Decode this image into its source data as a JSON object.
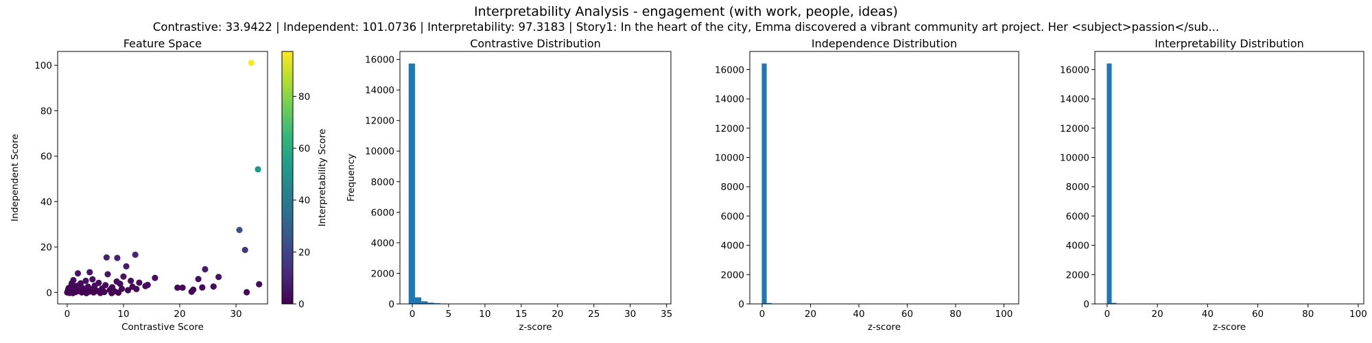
{
  "title": "Interpretability Analysis - engagement (with work, people, ideas)",
  "subtitle": "Contrastive: 33.9422 | Independent: 101.0736 | Interpretability: 97.3183 | Story1: In the heart of the city, Emma discovered a vibrant community art project. Her <subject>passion</sub...",
  "chart_data": [
    {
      "type": "scatter",
      "title": "Feature Space",
      "xlabel": "Contrastive Score",
      "ylabel": "Independent Score",
      "xlim": [
        -1.7,
        35.6
      ],
      "ylim": [
        -5.05,
        106.1
      ],
      "xticks": [
        0,
        10,
        20,
        30
      ],
      "yticks": [
        0,
        20,
        40,
        60,
        80,
        100
      ],
      "colorbar": {
        "label": "Interpretability Score",
        "range": [
          0,
          97.3
        ],
        "ticks": [
          0,
          20,
          40,
          60,
          80
        ],
        "colormap": "viridis"
      },
      "points": [
        {
          "x": 32.7,
          "y": 101.1,
          "c": 97.3
        },
        {
          "x": 33.9,
          "y": 54.2,
          "c": 52
        },
        {
          "x": 30.6,
          "y": 27.5,
          "c": 24
        },
        {
          "x": 31.6,
          "y": 18.7,
          "c": 15
        },
        {
          "x": 12.1,
          "y": 16.6,
          "c": 10
        },
        {
          "x": 7.0,
          "y": 15.4,
          "c": 9
        },
        {
          "x": 8.9,
          "y": 15.2,
          "c": 9
        },
        {
          "x": 10.5,
          "y": 11.5,
          "c": 7
        },
        {
          "x": 24.5,
          "y": 10.2,
          "c": 7
        },
        {
          "x": 4.0,
          "y": 8.9,
          "c": 6
        },
        {
          "x": 1.9,
          "y": 8.4,
          "c": 5
        },
        {
          "x": 7.2,
          "y": 8.0,
          "c": 5
        },
        {
          "x": 10.0,
          "y": 7.0,
          "c": 5
        },
        {
          "x": 26.9,
          "y": 6.8,
          "c": 5
        },
        {
          "x": 15.6,
          "y": 6.4,
          "c": 4
        },
        {
          "x": 23.3,
          "y": 5.9,
          "c": 4
        },
        {
          "x": 4.5,
          "y": 5.8,
          "c": 4
        },
        {
          "x": 1.1,
          "y": 5.4,
          "c": 4
        },
        {
          "x": 3.3,
          "y": 5.1,
          "c": 4
        },
        {
          "x": 11.3,
          "y": 5.1,
          "c": 4
        },
        {
          "x": 8.8,
          "y": 4.8,
          "c": 3
        },
        {
          "x": 12.8,
          "y": 4.3,
          "c": 3
        },
        {
          "x": 5.6,
          "y": 4.2,
          "c": 3
        },
        {
          "x": 0.8,
          "y": 4.0,
          "c": 3
        },
        {
          "x": 2.4,
          "y": 4.0,
          "c": 3
        },
        {
          "x": 9.4,
          "y": 3.8,
          "c": 3
        },
        {
          "x": 34.1,
          "y": 3.6,
          "c": 3
        },
        {
          "x": 14.3,
          "y": 3.3,
          "c": 3
        },
        {
          "x": 6.8,
          "y": 3.2,
          "c": 3
        },
        {
          "x": 4.9,
          "y": 3.0,
          "c": 3
        },
        {
          "x": 13.9,
          "y": 2.8,
          "c": 2
        },
        {
          "x": 1.6,
          "y": 2.8,
          "c": 2
        },
        {
          "x": 26.0,
          "y": 2.6,
          "c": 2
        },
        {
          "x": 11.6,
          "y": 2.5,
          "c": 2
        },
        {
          "x": 3.7,
          "y": 2.5,
          "c": 2
        },
        {
          "x": 8.0,
          "y": 2.3,
          "c": 2
        },
        {
          "x": 24.0,
          "y": 2.2,
          "c": 2
        },
        {
          "x": 19.6,
          "y": 2.1,
          "c": 2
        },
        {
          "x": 20.5,
          "y": 2.1,
          "c": 2
        },
        {
          "x": 0.3,
          "y": 2.0,
          "c": 2
        },
        {
          "x": 2.8,
          "y": 1.8,
          "c": 2
        },
        {
          "x": 6.2,
          "y": 1.7,
          "c": 2
        },
        {
          "x": 9.7,
          "y": 1.6,
          "c": 2
        },
        {
          "x": 12.3,
          "y": 1.5,
          "c": 2
        },
        {
          "x": 4.4,
          "y": 1.4,
          "c": 1
        },
        {
          "x": 22.4,
          "y": 1.2,
          "c": 1
        },
        {
          "x": 1.3,
          "y": 1.2,
          "c": 1
        },
        {
          "x": 7.6,
          "y": 1.1,
          "c": 1
        },
        {
          "x": 10.8,
          "y": 1.0,
          "c": 1
        },
        {
          "x": 22.1,
          "y": 0.3,
          "c": 1
        },
        {
          "x": 0.6,
          "y": 0.9,
          "c": 1
        },
        {
          "x": 3.1,
          "y": 0.8,
          "c": 1
        },
        {
          "x": 5.3,
          "y": 0.7,
          "c": 1
        },
        {
          "x": 2.0,
          "y": 0.6,
          "c": 1
        },
        {
          "x": 8.4,
          "y": 0.5,
          "c": 1
        },
        {
          "x": 0.1,
          "y": 0.4,
          "c": 1
        },
        {
          "x": 3.9,
          "y": 0.3,
          "c": 1
        },
        {
          "x": 6.6,
          "y": 0.2,
          "c": 1
        },
        {
          "x": 1.5,
          "y": 0.2,
          "c": 1
        },
        {
          "x": 31.9,
          "y": 0.1,
          "c": 1
        },
        {
          "x": 4.7,
          "y": 0.0,
          "c": 0
        },
        {
          "x": 2.6,
          "y": 0.0,
          "c": 0
        },
        {
          "x": 0.4,
          "y": -0.2,
          "c": 0
        },
        {
          "x": 9.1,
          "y": -0.1,
          "c": 0
        },
        {
          "x": 1.0,
          "y": -0.3,
          "c": 0
        },
        {
          "x": 3.4,
          "y": -0.3,
          "c": 0
        },
        {
          "x": 5.9,
          "y": -0.2,
          "c": 0
        },
        {
          "x": 0.0,
          "y": 0.0,
          "c": 0
        },
        {
          "x": 7.9,
          "y": -0.3,
          "c": 0
        },
        {
          "x": 0.9,
          "y": 3.0,
          "c": 1
        },
        {
          "x": 2.2,
          "y": 3.4,
          "c": 2
        },
        {
          "x": 1.8,
          "y": 1.0,
          "c": 1
        },
        {
          "x": 0.2,
          "y": 1.5,
          "c": 1
        }
      ]
    },
    {
      "type": "bar",
      "title": "Contrastive Distribution",
      "xlabel": "z-score",
      "ylabel": "Frequency",
      "xlim": [
        -1.7,
        35.6
      ],
      "ylim": [
        0,
        16520
      ],
      "xticks": [
        0,
        5,
        10,
        15,
        20,
        25,
        30,
        35
      ],
      "yticks": [
        0,
        2000,
        4000,
        6000,
        8000,
        10000,
        12000,
        14000,
        16000
      ],
      "bin_width": 0.87,
      "bins": [
        {
          "x0": -0.5,
          "count": 15730
        },
        {
          "x0": 0.37,
          "count": 430
        },
        {
          "x0": 1.24,
          "count": 170
        },
        {
          "x0": 2.11,
          "count": 80
        },
        {
          "x0": 2.98,
          "count": 45
        },
        {
          "x0": 3.85,
          "count": 25
        },
        {
          "x0": 4.72,
          "count": 15
        },
        {
          "x0": 5.59,
          "count": 8
        },
        {
          "x0": 6.46,
          "count": 5
        }
      ]
    },
    {
      "type": "bar",
      "title": "Independence Distribution",
      "xlabel": "z-score",
      "ylabel": "",
      "xlim": [
        -5.1,
        106.1
      ],
      "ylim": [
        0,
        17240
      ],
      "xticks": [
        0,
        20,
        40,
        60,
        80,
        100
      ],
      "yticks": [
        0,
        2000,
        4000,
        6000,
        8000,
        10000,
        12000,
        14000,
        16000
      ],
      "bin_width": 2.03,
      "bins": [
        {
          "x0": -0.15,
          "count": 16420
        },
        {
          "x0": 1.88,
          "count": 60
        },
        {
          "x0": 3.91,
          "count": 15
        }
      ]
    },
    {
      "type": "bar",
      "title": "Interpretability Distribution",
      "xlabel": "z-score",
      "ylabel": "",
      "xlim": [
        -4.9,
        102.2
      ],
      "ylim": [
        0,
        17240
      ],
      "xticks": [
        0,
        20,
        40,
        60,
        80,
        100
      ],
      "yticks": [
        0,
        2000,
        4000,
        6000,
        8000,
        10000,
        12000,
        14000,
        16000
      ],
      "bin_width": 1.95,
      "bins": [
        {
          "x0": -0.15,
          "count": 16420
        },
        {
          "x0": 1.8,
          "count": 70
        },
        {
          "x0": 3.75,
          "count": 15
        }
      ]
    }
  ]
}
